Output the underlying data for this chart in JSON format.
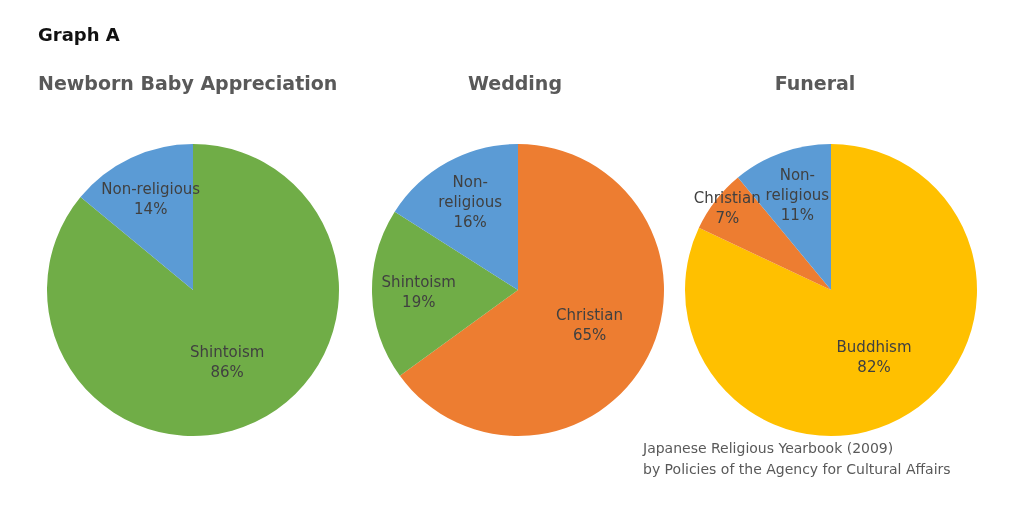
{
  "chart_data": [
    {
      "type": "pie",
      "title": "Newborn Baby Appreciation",
      "annotations": [
        "Graph A"
      ],
      "categories": [
        "Shintoism",
        "Non-religious"
      ],
      "values": [
        86,
        14
      ],
      "colors": [
        "#70ad47",
        "#5b9bd5"
      ],
      "data_labels": true,
      "value_labels": [
        "86%",
        "14%"
      ]
    },
    {
      "type": "pie",
      "title": "Wedding",
      "categories": [
        "Christian",
        "Shintoism",
        "Non-religious"
      ],
      "values": [
        65,
        19,
        16
      ],
      "colors": [
        "#ed7d31",
        "#70ad47",
        "#5b9bd5"
      ],
      "data_labels": true,
      "value_labels": [
        "65%",
        "19%",
        "16%"
      ]
    },
    {
      "type": "pie",
      "title": "Funeral",
      "annotations": [
        "Japanese Religious Yearbook (2009)\nby Policies of the Agency for Cultural Affairs"
      ],
      "categories": [
        "Buddhism",
        "Christian",
        "Non-religious"
      ],
      "values": [
        82,
        7,
        11
      ],
      "colors": [
        "#ffc000",
        "#ed7d31",
        "#5b9bd5"
      ],
      "data_labels": true,
      "value_labels": [
        "82%",
        "7%",
        "11%"
      ]
    }
  ]
}
